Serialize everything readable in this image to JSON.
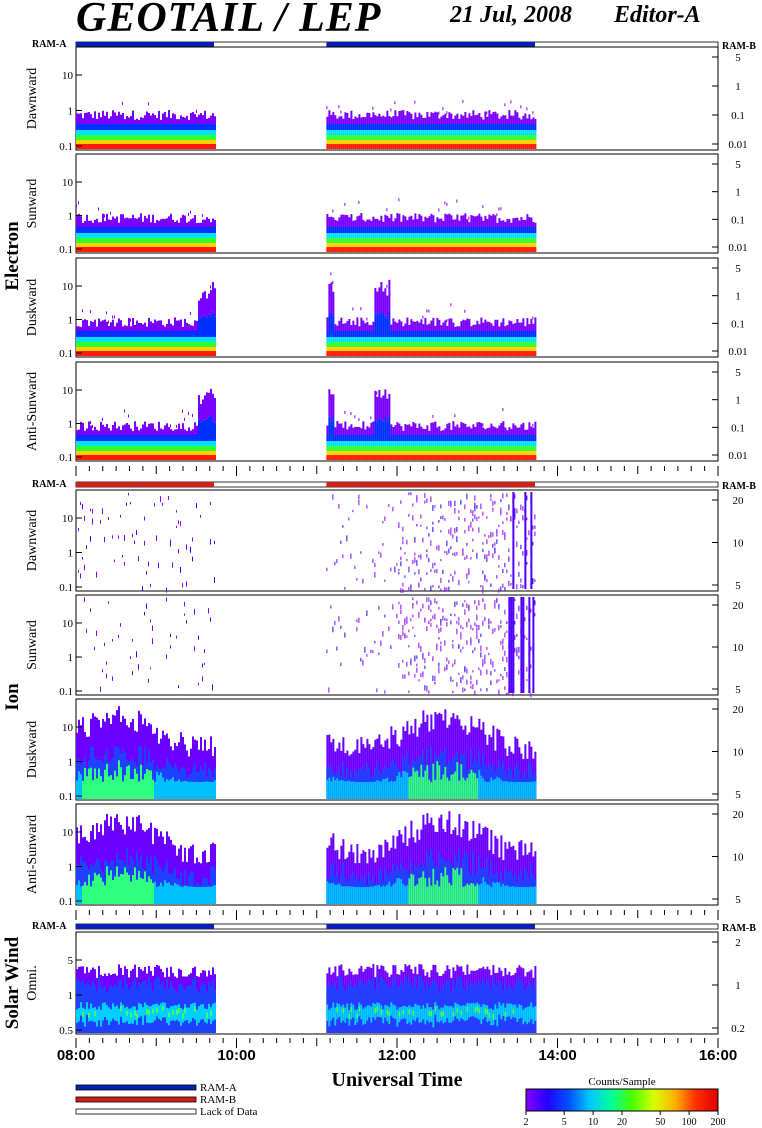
{
  "header": {
    "title": "GEOTAIL / LEP",
    "date": "21 Jul, 2008",
    "editor": "Editor-A"
  },
  "ram_labels": {
    "left": "RAM-A",
    "right": "RAM-B"
  },
  "colors": {
    "ram_a": "#0a1fb4",
    "ram_b": "#d21e14",
    "lack": "#ffffff"
  },
  "groups": [
    {
      "name": "Electron",
      "bar_color": "ram_a"
    },
    {
      "name": "Ion",
      "bar_color": "ram_b"
    },
    {
      "name": "Solar Wind",
      "bar_color": "ram_a"
    }
  ],
  "panels": [
    {
      "group": "Electron",
      "label": "Dawnward",
      "left_ticks": [
        "10",
        "1",
        "0.1"
      ],
      "right_ticks": [
        "5",
        "1",
        "0.1",
        "0.01"
      ],
      "style": "electron"
    },
    {
      "group": "Electron",
      "label": "Sunward",
      "left_ticks": [
        "10",
        "1",
        "0.1"
      ],
      "right_ticks": [
        "5",
        "1",
        "0.1",
        "0.01"
      ],
      "style": "electron"
    },
    {
      "group": "Electron",
      "label": "Duskward",
      "left_ticks": [
        "10",
        "1",
        "0.1"
      ],
      "right_ticks": [
        "5",
        "1",
        "0.1",
        "0.01"
      ],
      "style": "electron_active"
    },
    {
      "group": "Electron",
      "label": "Anti-Sunward",
      "left_ticks": [
        "10",
        "1",
        "0.1"
      ],
      "right_ticks": [
        "5",
        "1",
        "0.1",
        "0.01"
      ],
      "style": "electron_active"
    },
    {
      "group": "Ion",
      "label": "Dawnward",
      "left_ticks": [
        "10",
        "1",
        "0.1"
      ],
      "right_ticks": [
        "20",
        "10",
        "5"
      ],
      "style": "ion_sparse"
    },
    {
      "group": "Ion",
      "label": "Sunward",
      "left_ticks": [
        "10",
        "1",
        "0.1"
      ],
      "right_ticks": [
        "20",
        "10",
        "5"
      ],
      "style": "ion_sparse"
    },
    {
      "group": "Ion",
      "label": "Duskward",
      "left_ticks": [
        "10",
        "1",
        "0.1"
      ],
      "right_ticks": [
        "20",
        "10",
        "5"
      ],
      "style": "ion_dense"
    },
    {
      "group": "Ion",
      "label": "Anti-Sunward",
      "left_ticks": [
        "10",
        "1",
        "0.1"
      ],
      "right_ticks": [
        "20",
        "10",
        "5"
      ],
      "style": "ion_dense"
    },
    {
      "group": "Solar Wind",
      "label": "Omni.",
      "left_ticks": [
        "5",
        "1",
        "0.5"
      ],
      "right_ticks": [
        "2",
        "1",
        "0.2"
      ],
      "style": "solar"
    }
  ],
  "chart_data": {
    "type": "heatmap",
    "xlabel": "Universal Time",
    "x_ticks": [
      "08:00",
      "10:00",
      "12:00",
      "14:00",
      "16:00"
    ],
    "x_range_hours": [
      8,
      16
    ],
    "data_intervals_hours": [
      [
        8.0,
        9.72
      ],
      [
        11.12,
        13.72
      ]
    ],
    "colorbar": {
      "label": "Counts/Sample",
      "ticks": [
        "2",
        "5",
        "10",
        "20",
        "50",
        "100",
        "200"
      ],
      "values": [
        2,
        5,
        10,
        20,
        50,
        100,
        200
      ],
      "scale": "log"
    }
  },
  "legend": [
    {
      "label": "RAM-A",
      "color": "ram_a"
    },
    {
      "label": "RAM-B",
      "color": "ram_b"
    },
    {
      "label": "Lack of Data",
      "color": "lack"
    }
  ]
}
